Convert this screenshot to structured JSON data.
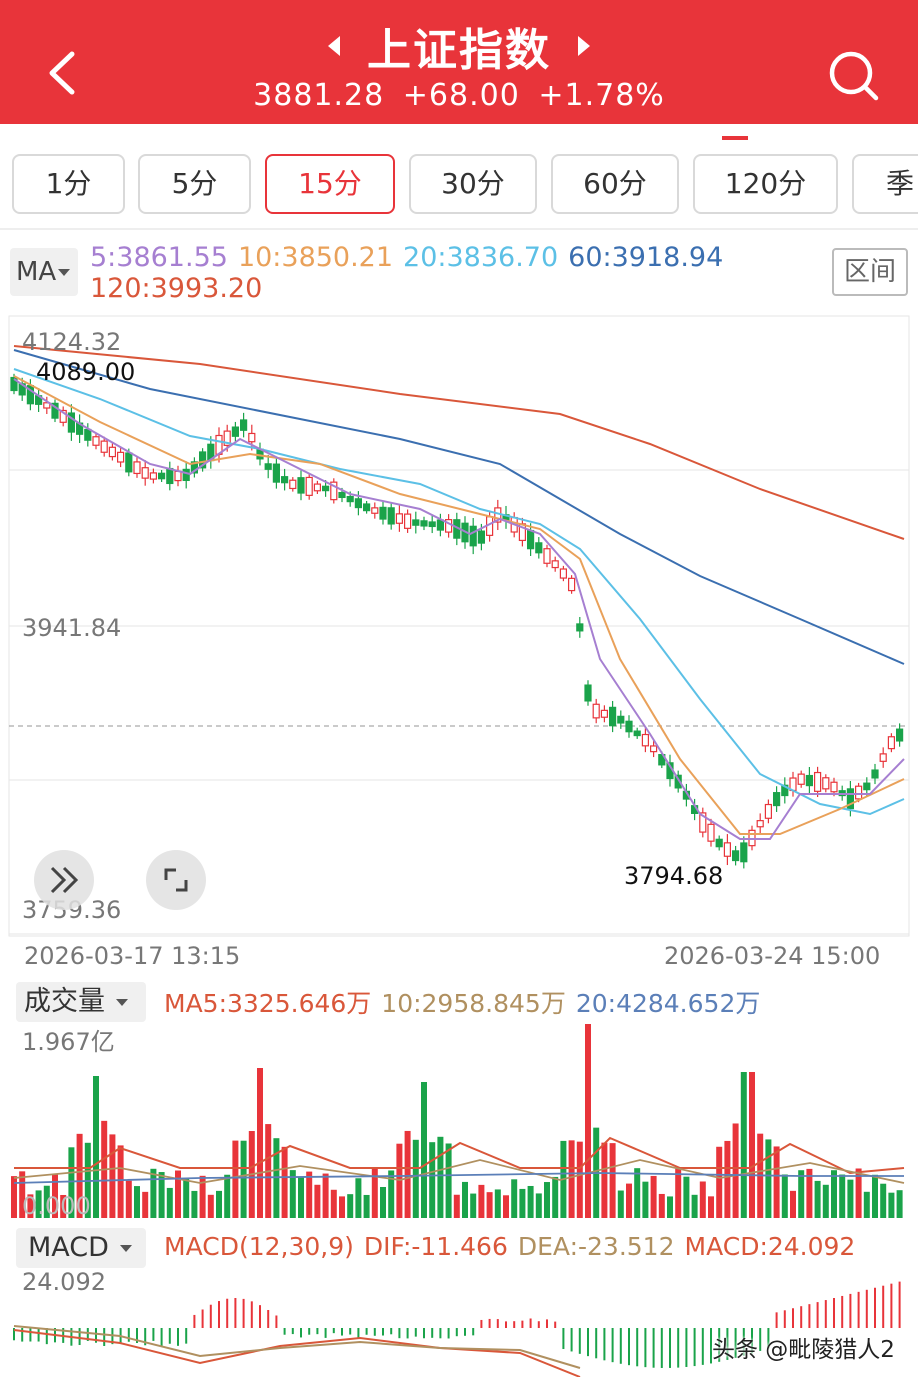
{
  "header": {
    "title": "上证指数",
    "price": "3881.28",
    "change": "+68.00",
    "change_pct": "+1.78%"
  },
  "tabs": [
    {
      "label": "1分",
      "active": false
    },
    {
      "label": "5分",
      "active": false
    },
    {
      "label": "15分",
      "active": true
    },
    {
      "label": "30分",
      "active": false
    },
    {
      "label": "60分",
      "active": false
    },
    {
      "label": "120分",
      "active": false
    },
    {
      "label": "季",
      "active": false
    }
  ],
  "ma_legend": {
    "selector": "MA",
    "ma5": "5:3861.55",
    "ma10": "10:3850.21",
    "ma20": "20:3836.70",
    "ma60": "60:3918.94",
    "ma120": "120:3993.20",
    "range_button": "区间",
    "colors": {
      "ma5": "#a67fd1",
      "ma10": "#e9a15a",
      "ma20": "#5cc0e6",
      "ma60": "#3b6fb0",
      "ma120": "#d9573a"
    }
  },
  "price_chart": {
    "y_high_label": "4124.32",
    "y_mid_label": "3941.84",
    "y_low_label": "3759.36",
    "max_marker": "4089.00",
    "min_marker": "3794.68",
    "start_time": "2026-03-17  13:15",
    "end_time": "2026-03-24  15:00"
  },
  "volume": {
    "selector": "成交量",
    "ma5": "MA5:3325.646万",
    "ma10": "10:2958.845万",
    "ma20": "20:4284.652万",
    "max_label": "1.967亿",
    "zero_label": "0.000"
  },
  "macd": {
    "selector": "MACD",
    "params": "MACD(12,30,9)",
    "dif": "DIF:-11.466",
    "dea": "DEA:-23.512",
    "macd": "MACD:24.092",
    "max_label": "24.092"
  },
  "watermark": "头条 @毗陵猎人2"
}
